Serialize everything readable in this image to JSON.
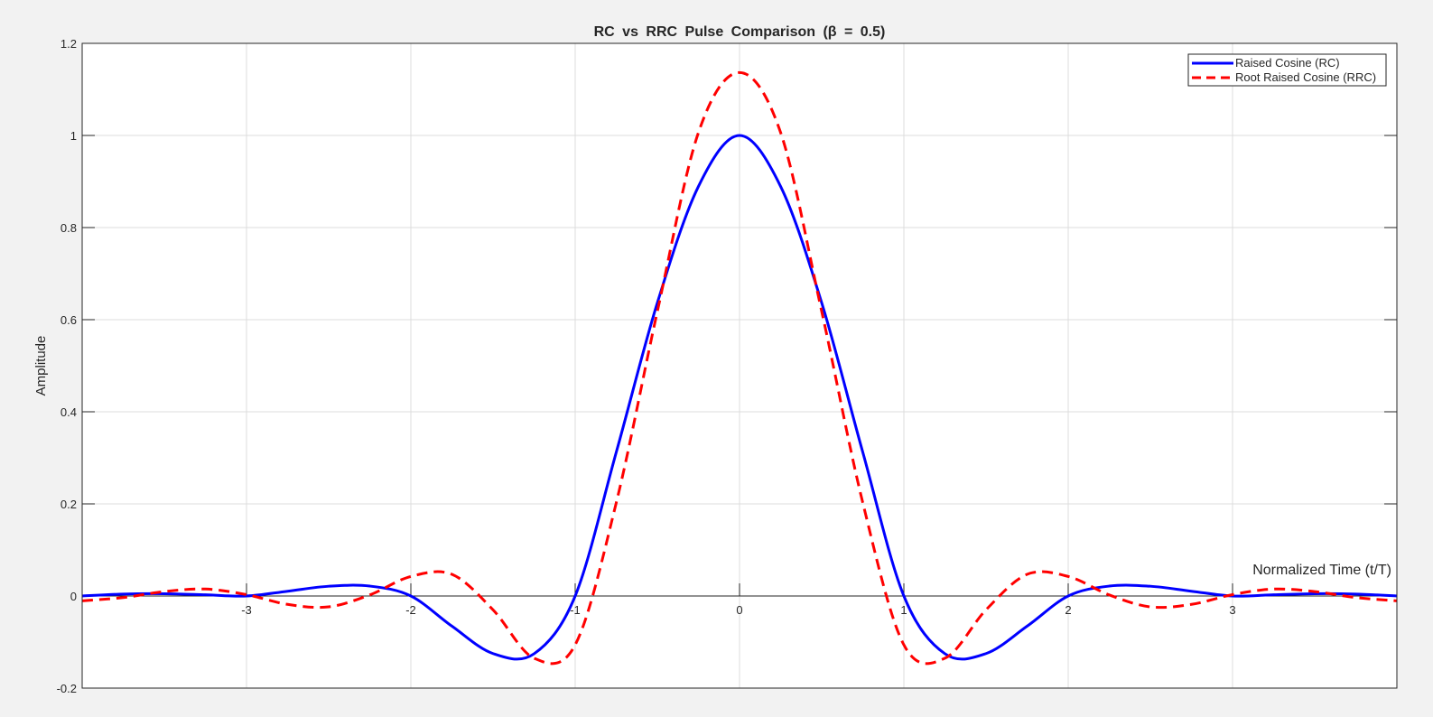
{
  "chart_data": {
    "type": "line",
    "title": "RC vs RRC Pulse Comparison (β = 0.5)",
    "xlabel": "Normalized Time (t/T)",
    "ylabel": "Amplitude",
    "xlim": [
      -4,
      4
    ],
    "ylim": [
      -0.2,
      1.2
    ],
    "xticks": [
      -3,
      -2,
      -1,
      0,
      1,
      2,
      3
    ],
    "xtick_labels": [
      "-3",
      "-2",
      "-1",
      "0",
      "1",
      "2",
      "3"
    ],
    "yticks": [
      -0.2,
      0,
      0.2,
      0.4,
      0.6,
      0.8,
      1,
      1.2
    ],
    "ytick_labels": [
      "-0.2",
      "0",
      "0.2",
      "0.4",
      "0.6",
      "0.8",
      "1",
      "1.2"
    ],
    "grid": true,
    "legend_position": "top-right",
    "beta": 0.5,
    "series": [
      {
        "name": "Raised Cosine (RC)",
        "color": "#0000ff",
        "style": "solid",
        "x": [
          -4,
          -3.75,
          -3.5,
          -3.25,
          -3,
          -2.75,
          -2.5,
          -2.25,
          -2,
          -1.75,
          -1.5,
          -1.25,
          -1,
          -0.75,
          -0.5,
          -0.25,
          0,
          0.25,
          0.5,
          0.75,
          1,
          1.25,
          1.5,
          1.75,
          2,
          2.25,
          2.5,
          2.75,
          3,
          3.25,
          3.5,
          3.75,
          4
        ],
        "values": [
          0,
          0.0042,
          0.005,
          0.0027,
          0,
          0.0104,
          0.0212,
          0.0215,
          0,
          -0.0655,
          -0.125,
          -0.1254,
          0,
          0.3122,
          0.6366,
          0.8894,
          1,
          0.8894,
          0.6366,
          0.3122,
          0,
          -0.1254,
          -0.125,
          -0.0655,
          0,
          0.0215,
          0.0212,
          0.0104,
          0,
          0.0027,
          0.005,
          0.0042,
          0
        ]
      },
      {
        "name": "Root Raised Cosine (RRC)",
        "color": "#ff0000",
        "style": "dashed",
        "x": [
          -4,
          -3.75,
          -3.5,
          -3.25,
          -3,
          -2.75,
          -2.5,
          -2.25,
          -2,
          -1.75,
          -1.5,
          -1.25,
          -1,
          -0.75,
          -0.5,
          -0.25,
          0,
          0.25,
          0.5,
          0.75,
          1,
          1.25,
          1.5,
          1.75,
          2,
          2.25,
          2.5,
          2.75,
          3,
          3.25,
          3.5,
          3.75,
          4
        ],
        "values": [
          -0.0106,
          -0.0034,
          0.0096,
          0.0151,
          0.003,
          -0.0182,
          -0.0236,
          0.0023,
          0.0424,
          0.047,
          -0.03,
          -0.1351,
          -0.1061,
          0.2026,
          0.618,
          1.0063,
          1.1366,
          1.0063,
          0.618,
          0.2026,
          -0.1061,
          -0.1351,
          -0.03,
          0.047,
          0.0424,
          0.0023,
          -0.0236,
          -0.0182,
          0.003,
          0.0151,
          0.0096,
          -0.0034,
          -0.0106
        ]
      }
    ]
  }
}
